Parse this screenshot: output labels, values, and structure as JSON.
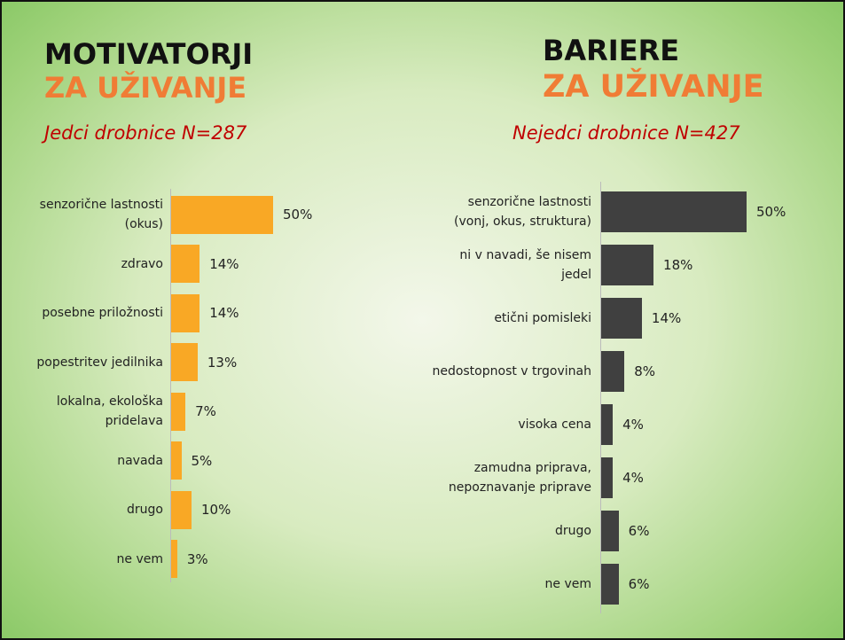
{
  "chart_data": [
    {
      "type": "bar",
      "orientation": "horizontal",
      "title_lines": [
        "MOTIVATORJI",
        "ZA UŽIVANJE"
      ],
      "subtitle": "Jedci drobnice N=287",
      "categories": [
        "senzorične lastnosti\n(okus)",
        "zdravo",
        "posebne priložnosti",
        "popestritev jedilnika",
        "lokalna, ekološka\npridelava",
        "navada",
        "drugo",
        "ne vem"
      ],
      "values": [
        50,
        14,
        14,
        13,
        7,
        5,
        10,
        3
      ],
      "value_labels": [
        "50%",
        "14%",
        "14%",
        "13%",
        "7%",
        "5%",
        "10%",
        "3%"
      ],
      "color": "#f9a825"
    },
    {
      "type": "bar",
      "orientation": "horizontal",
      "title_lines": [
        "BARIERE",
        "ZA UŽIVANJE"
      ],
      "subtitle": "Nejedci drobnice  N=427",
      "categories": [
        "senzorične lastnosti\n(vonj, okus, struktura)",
        "ni v navadi, še nisem\njedel",
        "etični pomisleki",
        "nedostopnost v trgovinah",
        "visoka cena",
        "zamudna priprava,\nnepoznavanje priprave",
        "drugo",
        "ne vem"
      ],
      "values": [
        50,
        18,
        14,
        8,
        4,
        4,
        6,
        6
      ],
      "value_labels": [
        "50%",
        "18%",
        "14%",
        "8%",
        "4%",
        "4%",
        "6%",
        "6%"
      ],
      "color": "#404040"
    }
  ]
}
